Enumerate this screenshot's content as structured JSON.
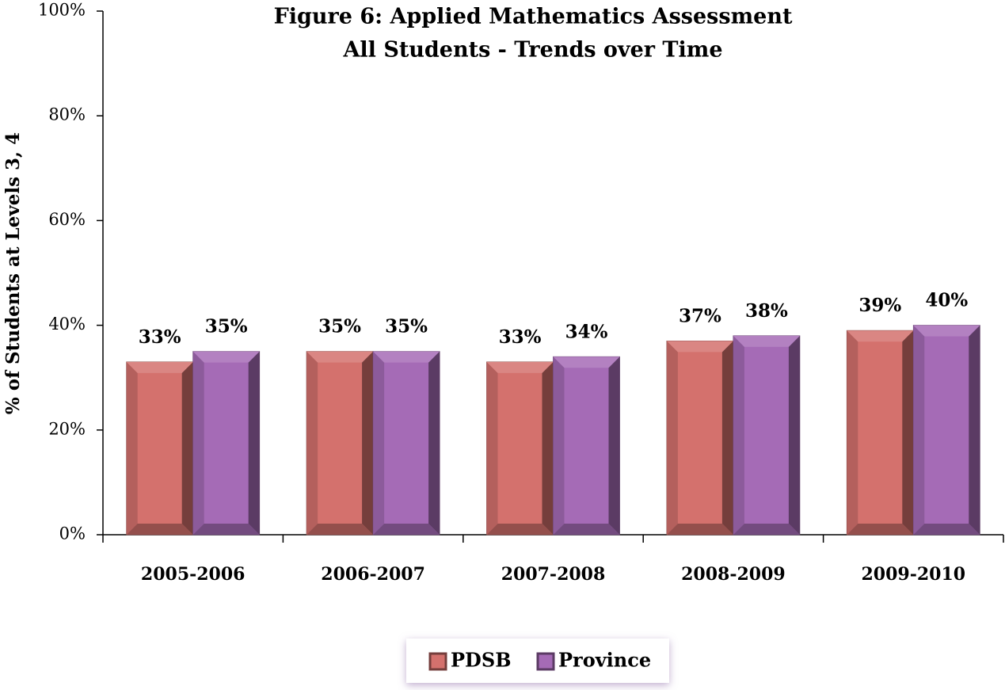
{
  "chart_data": {
    "type": "bar",
    "title": "Figure 6:  Applied Mathematics Assessment",
    "subtitle": "All Students - Trends over Time",
    "y_label": "% of Students at Levels  3, 4",
    "categories": [
      "2005-2006",
      "2006-2007",
      "2007-2008",
      "2008-2009",
      "2009-2010"
    ],
    "series": [
      {
        "name": "PDSB",
        "color": "#d4716d",
        "values": [
          33,
          35,
          33,
          37,
          39
        ],
        "value_labels": [
          "33%",
          "35%",
          "33%",
          "37%",
          "39%"
        ]
      },
      {
        "name": "Province",
        "color": "#a56bb6",
        "values": [
          35,
          35,
          34,
          38,
          40
        ],
        "value_labels": [
          "35%",
          "35%",
          "34%",
          "38%",
          "40%"
        ]
      }
    ],
    "ylim": [
      0,
      100
    ],
    "yticks": [
      {
        "value": 0,
        "label": "0%"
      },
      {
        "value": 20,
        "label": "20%"
      },
      {
        "value": 40,
        "label": "40%"
      },
      {
        "value": 60,
        "label": "60%"
      },
      {
        "value": 80,
        "label": "80%"
      },
      {
        "value": 100,
        "label": "100%"
      }
    ],
    "grid": false,
    "legend": "bottom"
  }
}
